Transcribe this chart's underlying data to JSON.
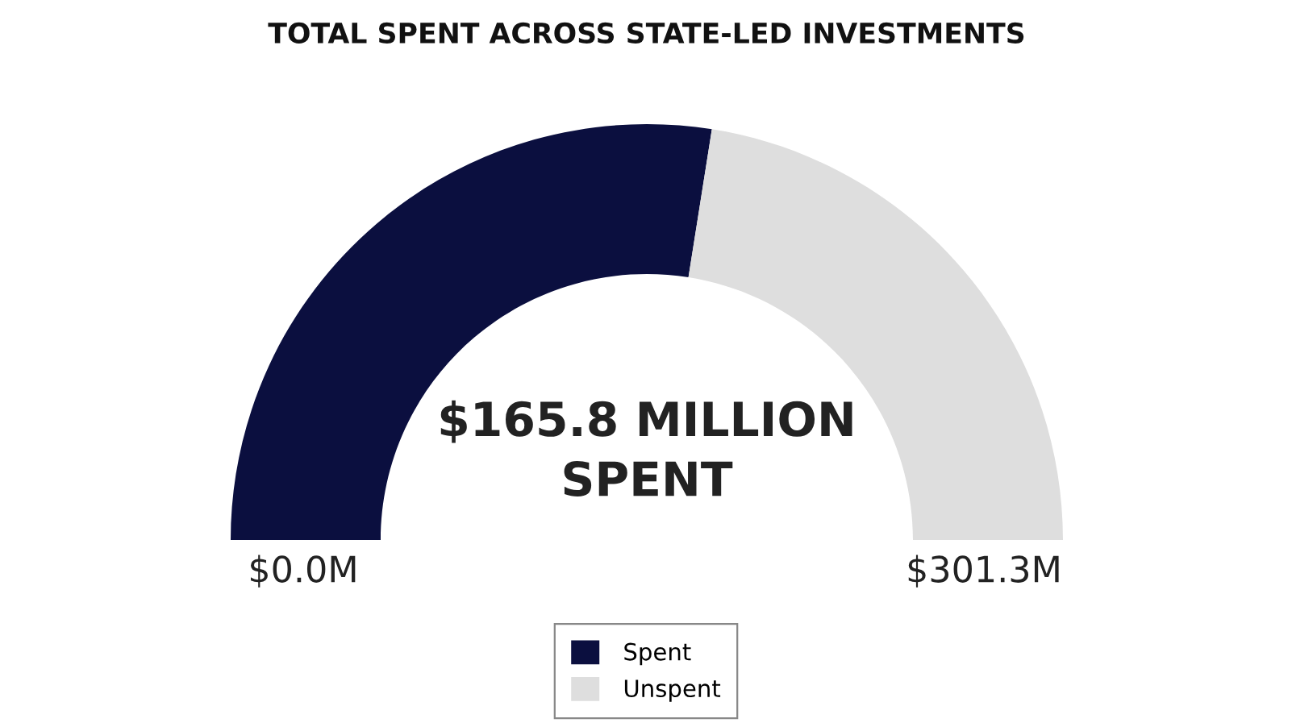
{
  "chart_data": {
    "type": "donut",
    "title": "TOTAL SPENT ACROSS STATE-LED INVESTMENTS",
    "categories": [
      "Spent",
      "Unspent"
    ],
    "values": [
      55.0,
      45.0
    ],
    "colors": [
      "#0b0f3f",
      "#dedede"
    ],
    "annotations": [
      "$165.8 MILLION\nSPENT",
      "$0.0M",
      "$301.3M"
    ],
    "legend": "bottom"
  }
}
